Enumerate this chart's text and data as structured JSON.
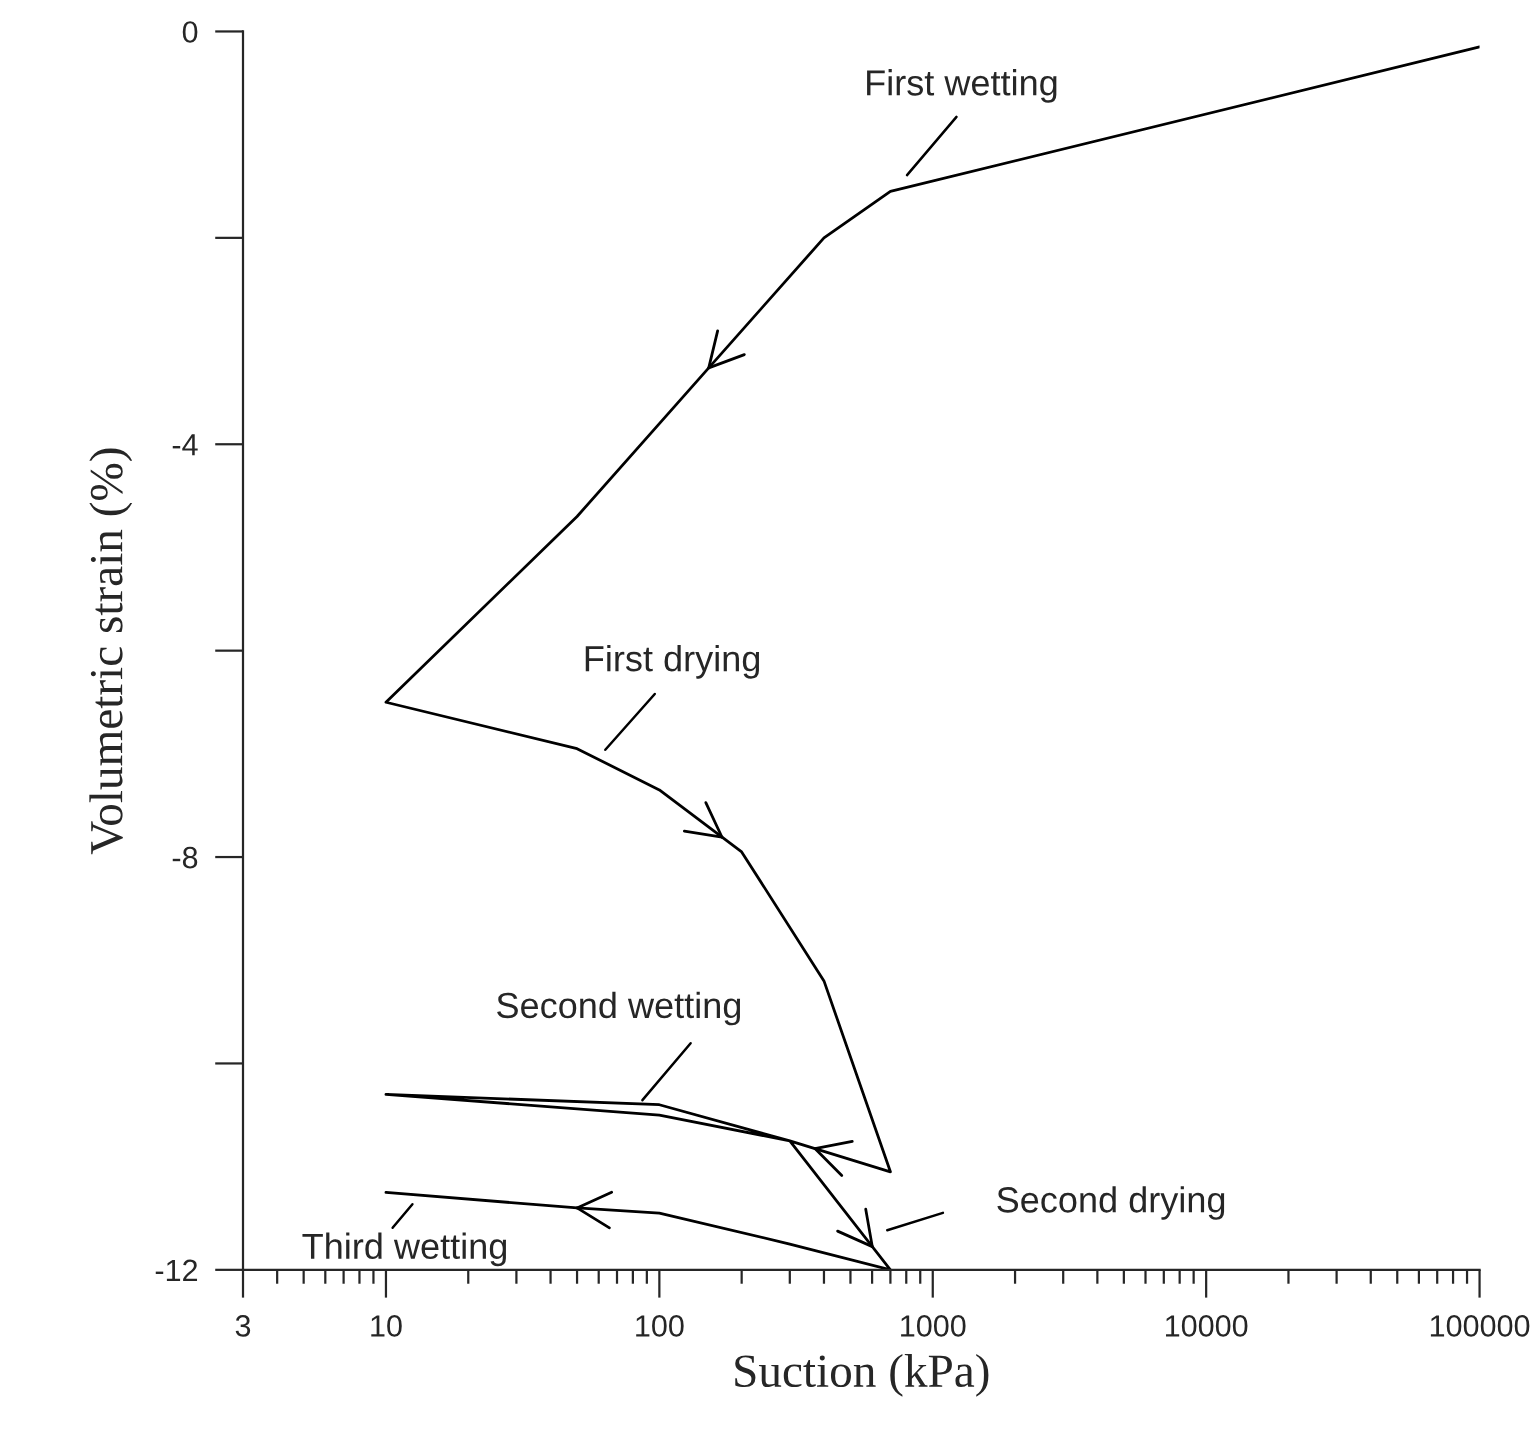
{
  "chart_data": {
    "type": "line",
    "xlabel": "Suction (kPa)",
    "ylabel": "Volumetric strain (%)",
    "x": [
      100000,
      700,
      400,
      100,
      50,
      10,
      50,
      100,
      200,
      400,
      700,
      300,
      100,
      10,
      100,
      300,
      700,
      300,
      100,
      50,
      10
    ],
    "series": [
      {
        "color": "#000000",
        "values": [
          -0.15,
          -1.55,
          -2,
          -3.8,
          -4.7,
          -6.5,
          -6.95,
          -7.35,
          -7.95,
          -9.2,
          -11.05,
          -10.75,
          -10.5,
          -10.3,
          -10.4,
          -10.75,
          -12,
          -11.75,
          -11.45,
          -11.4,
          -11.25
        ]
      }
    ],
    "log": "x",
    "xlim": [
      3,
      100000
    ],
    "xticks": [
      3,
      10,
      100,
      1000,
      10000,
      100000
    ],
    "ylim": [
      -12,
      0
    ],
    "yticks": [
      0,
      {
        "value": -2,
        "label": null
      },
      -4,
      {
        "value": -6,
        "label": null
      },
      -8,
      {
        "value": -10,
        "label": null
      },
      -12
    ],
    "grid": false,
    "legend": false,
    "marker": "none",
    "line_style": "solid",
    "annotations": [
      "First wetting",
      "First drying",
      "Second wetting",
      "Third wetting",
      "Second drying"
    ]
  }
}
